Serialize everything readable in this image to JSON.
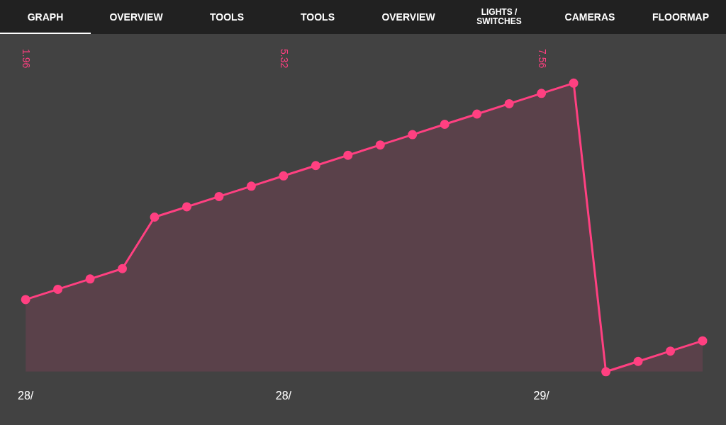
{
  "chart_data": {
    "type": "area",
    "categories": [
      "28/",
      null,
      null,
      null,
      null,
      null,
      null,
      null,
      "28/",
      null,
      null,
      null,
      null,
      null,
      null,
      null,
      "29/",
      null,
      null,
      null,
      null,
      null
    ],
    "values": [
      1.96,
      2.24,
      2.52,
      2.8,
      4.2,
      4.48,
      4.76,
      5.04,
      5.32,
      5.6,
      5.88,
      6.16,
      6.44,
      6.72,
      7.0,
      7.28,
      7.56,
      7.84,
      0,
      0.28,
      0.56,
      0.84
    ],
    "value_labels": [
      "1.96",
      null,
      null,
      null,
      null,
      null,
      null,
      null,
      "5.32",
      null,
      null,
      null,
      null,
      null,
      null,
      null,
      "7.56",
      null,
      null,
      null,
      null,
      null
    ],
    "color": "#ff4081",
    "marker": "circle",
    "tick_labels": "x",
    "annotations": [
      "GRAPH",
      "OVERVIEW",
      "TOOLS",
      "TOOLS",
      "OVERVIEW",
      "LIGHTS / SWITCHES",
      "CAMERAS",
      "FLOORMAP"
    ]
  }
}
